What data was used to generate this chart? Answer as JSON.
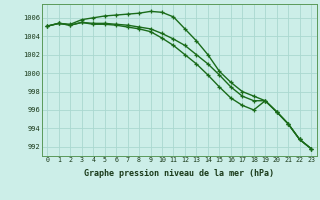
{
  "xlabel": "Graphe pression niveau de la mer (hPa)",
  "bg_color": "#cceee8",
  "grid_color": "#aad8d0",
  "line_color": "#1a6b1a",
  "x": [
    0,
    1,
    2,
    3,
    4,
    5,
    6,
    7,
    8,
    9,
    10,
    11,
    12,
    13,
    14,
    15,
    16,
    17,
    18,
    19,
    20,
    21,
    22,
    23
  ],
  "line1": [
    1005.1,
    1005.4,
    1005.3,
    1005.8,
    1006.0,
    1006.2,
    1006.3,
    1006.4,
    1006.5,
    1006.7,
    1006.6,
    1006.1,
    1004.8,
    1003.5,
    1002.0,
    1000.2,
    999.0,
    998.0,
    997.5,
    997.0,
    995.8,
    994.5,
    992.8,
    991.8
  ],
  "line2": [
    1005.1,
    1005.4,
    1005.2,
    1005.5,
    1005.4,
    1005.4,
    1005.3,
    1005.2,
    1005.0,
    1004.8,
    1004.3,
    1003.7,
    1003.0,
    1002.0,
    1001.0,
    999.8,
    998.5,
    997.5,
    997.0,
    997.0,
    995.8,
    994.5,
    992.8,
    991.8
  ],
  "line3": [
    1005.1,
    1005.4,
    1005.2,
    1005.5,
    1005.3,
    1005.3,
    1005.2,
    1005.0,
    1004.8,
    1004.5,
    1003.8,
    1003.0,
    1002.0,
    1001.0,
    999.8,
    998.5,
    997.3,
    996.5,
    996.0,
    997.0,
    995.8,
    994.5,
    992.8,
    991.8
  ],
  "ylim": [
    991,
    1007.5
  ],
  "yticks": [
    992,
    994,
    996,
    998,
    1000,
    1002,
    1004,
    1006
  ],
  "marker": "+",
  "marker_size": 3.5,
  "line_width": 1.0
}
